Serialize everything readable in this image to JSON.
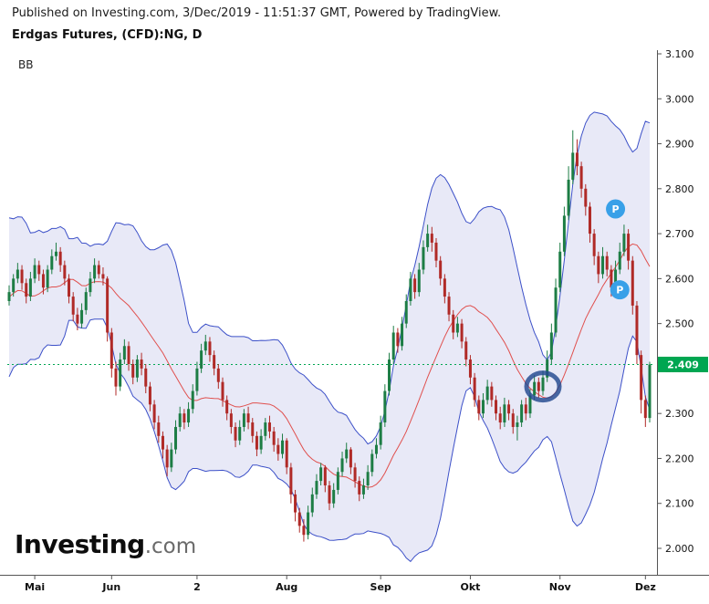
{
  "header": {
    "published_line": "Published on Investing.com, 3/Dec/2019 - 11:51:37 GMT, Powered by TradingView.",
    "instrument_title": "Erdgas Futures, (CFD):NG, D"
  },
  "indicator_label": "BB",
  "watermark": {
    "bold": "Investing",
    "suffix": ".com"
  },
  "colors": {
    "up": "#1d7d45",
    "down": "#b02a27",
    "band_line": "#3c50c8",
    "band_fill": "rgba(90,102,196,0.14)",
    "basis_line": "#e0504e",
    "last_price": "#00a651",
    "marker": "#38a0e8",
    "annotation": "#22498f",
    "axis_line": "#555555",
    "axis_text": "#111111"
  },
  "chart_data": {
    "type": "candlestick",
    "title": "Erdgas Futures, (CFD):NG, D",
    "interval": "D",
    "overlays": [
      "Bollinger Bands"
    ],
    "indicator": {
      "name": "BB",
      "period": 20,
      "stddev": 2
    },
    "y_axis": {
      "min": 1.95,
      "max": 3.12,
      "ticks": [
        {
          "label": "3.100",
          "price": 3.1
        },
        {
          "label": "3.000",
          "price": 3.0
        },
        {
          "label": "2.900",
          "price": 2.9
        },
        {
          "label": "2.800",
          "price": 2.8
        },
        {
          "label": "2.700",
          "price": 2.7
        },
        {
          "label": "2.600",
          "price": 2.6
        },
        {
          "label": "2.500",
          "price": 2.5
        },
        {
          "label": "2.400",
          "price": 2.4
        },
        {
          "label": "2.300",
          "price": 2.3
        },
        {
          "label": "2.200",
          "price": 2.2
        },
        {
          "label": "2.100",
          "price": 2.1
        },
        {
          "label": "2.000",
          "price": 2.0
        }
      ]
    },
    "x_axis": {
      "ticks": [
        {
          "label": "Mai",
          "index": 6
        },
        {
          "label": "Jun",
          "index": 24
        },
        {
          "label": "2",
          "index": 44
        },
        {
          "label": "Aug",
          "index": 65
        },
        {
          "label": "Sep",
          "index": 87
        },
        {
          "label": "Okt",
          "index": 108
        },
        {
          "label": "Nov",
          "index": 129
        },
        {
          "label": "Dez",
          "index": 149
        }
      ]
    },
    "last_price": {
      "value": 2.409,
      "label": "2.409"
    },
    "bb_warmup_closes": [
      2.42,
      2.5,
      2.6,
      2.68,
      2.72,
      2.62,
      2.52,
      2.44,
      2.5,
      2.6,
      2.66,
      2.58,
      2.46,
      2.42,
      2.52,
      2.62,
      2.68,
      2.58,
      2.48
    ],
    "candles_ohlc": [
      [
        2.55,
        2.585,
        2.54,
        2.57
      ],
      [
        2.57,
        2.61,
        2.56,
        2.6
      ],
      [
        2.6,
        2.635,
        2.59,
        2.62
      ],
      [
        2.62,
        2.63,
        2.575,
        2.59
      ],
      [
        2.59,
        2.6,
        2.545,
        2.56
      ],
      [
        2.56,
        2.615,
        2.55,
        2.6
      ],
      [
        2.6,
        2.645,
        2.59,
        2.63
      ],
      [
        2.63,
        2.64,
        2.595,
        2.61
      ],
      [
        2.61,
        2.62,
        2.565,
        2.58
      ],
      [
        2.58,
        2.63,
        2.57,
        2.62
      ],
      [
        2.62,
        2.665,
        2.61,
        2.65
      ],
      [
        2.65,
        2.68,
        2.64,
        2.66
      ],
      [
        2.66,
        2.67,
        2.615,
        2.63
      ],
      [
        2.63,
        2.64,
        2.585,
        2.6
      ],
      [
        2.6,
        2.61,
        2.545,
        2.56
      ],
      [
        2.56,
        2.57,
        2.505,
        2.52
      ],
      [
        2.52,
        2.535,
        2.485,
        2.5
      ],
      [
        2.5,
        2.545,
        2.49,
        2.53
      ],
      [
        2.53,
        2.58,
        2.52,
        2.57
      ],
      [
        2.57,
        2.615,
        2.56,
        2.6
      ],
      [
        2.6,
        2.645,
        2.59,
        2.63
      ],
      [
        2.63,
        2.64,
        2.6,
        2.61
      ],
      [
        2.61,
        2.625,
        2.585,
        2.6
      ],
      [
        2.6,
        2.605,
        2.46,
        2.48
      ],
      [
        2.48,
        2.49,
        2.38,
        2.4
      ],
      [
        2.4,
        2.415,
        2.34,
        2.36
      ],
      [
        2.36,
        2.435,
        2.35,
        2.42
      ],
      [
        2.42,
        2.465,
        2.41,
        2.45
      ],
      [
        2.45,
        2.46,
        2.395,
        2.41
      ],
      [
        2.41,
        2.42,
        2.365,
        2.38
      ],
      [
        2.38,
        2.43,
        2.37,
        2.42
      ],
      [
        2.42,
        2.435,
        2.385,
        2.4
      ],
      [
        2.4,
        2.41,
        2.345,
        2.36
      ],
      [
        2.36,
        2.37,
        2.305,
        2.32
      ],
      [
        2.32,
        2.33,
        2.265,
        2.28
      ],
      [
        2.28,
        2.295,
        2.235,
        2.25
      ],
      [
        2.25,
        2.26,
        2.2,
        2.22
      ],
      [
        2.22,
        2.23,
        2.16,
        2.18
      ],
      [
        2.18,
        2.235,
        2.17,
        2.22
      ],
      [
        2.22,
        2.285,
        2.21,
        2.27
      ],
      [
        2.27,
        2.315,
        2.26,
        2.3
      ],
      [
        2.3,
        2.31,
        2.265,
        2.28
      ],
      [
        2.28,
        2.325,
        2.27,
        2.31
      ],
      [
        2.31,
        2.365,
        2.3,
        2.35
      ],
      [
        2.35,
        2.415,
        2.34,
        2.4
      ],
      [
        2.4,
        2.455,
        2.39,
        2.44
      ],
      [
        2.44,
        2.475,
        2.43,
        2.46
      ],
      [
        2.46,
        2.47,
        2.415,
        2.43
      ],
      [
        2.43,
        2.44,
        2.385,
        2.4
      ],
      [
        2.4,
        2.41,
        2.355,
        2.37
      ],
      [
        2.37,
        2.38,
        2.315,
        2.33
      ],
      [
        2.33,
        2.34,
        2.285,
        2.3
      ],
      [
        2.3,
        2.31,
        2.255,
        2.27
      ],
      [
        2.27,
        2.28,
        2.225,
        2.24
      ],
      [
        2.24,
        2.285,
        2.23,
        2.27
      ],
      [
        2.27,
        2.31,
        2.26,
        2.3
      ],
      [
        2.3,
        2.315,
        2.265,
        2.28
      ],
      [
        2.28,
        2.29,
        2.235,
        2.25
      ],
      [
        2.25,
        2.26,
        2.205,
        2.22
      ],
      [
        2.22,
        2.265,
        2.21,
        2.25
      ],
      [
        2.25,
        2.29,
        2.24,
        2.28
      ],
      [
        2.28,
        2.295,
        2.245,
        2.26
      ],
      [
        2.26,
        2.27,
        2.215,
        2.23
      ],
      [
        2.23,
        2.245,
        2.195,
        2.21
      ],
      [
        2.21,
        2.255,
        2.2,
        2.24
      ],
      [
        2.24,
        2.245,
        2.165,
        2.18
      ],
      [
        2.18,
        2.19,
        2.1,
        2.12
      ],
      [
        2.12,
        2.13,
        2.06,
        2.08
      ],
      [
        2.08,
        2.09,
        2.035,
        2.05
      ],
      [
        2.05,
        2.065,
        2.015,
        2.03
      ],
      [
        2.03,
        2.095,
        2.02,
        2.08
      ],
      [
        2.08,
        2.135,
        2.07,
        2.12
      ],
      [
        2.12,
        2.165,
        2.11,
        2.15
      ],
      [
        2.15,
        2.19,
        2.14,
        2.18
      ],
      [
        2.18,
        2.185,
        2.125,
        2.14
      ],
      [
        2.14,
        2.15,
        2.085,
        2.1
      ],
      [
        2.1,
        2.145,
        2.09,
        2.13
      ],
      [
        2.13,
        2.18,
        2.12,
        2.17
      ],
      [
        2.17,
        2.215,
        2.16,
        2.2
      ],
      [
        2.2,
        2.235,
        2.19,
        2.22
      ],
      [
        2.22,
        2.225,
        2.165,
        2.18
      ],
      [
        2.18,
        2.19,
        2.135,
        2.15
      ],
      [
        2.15,
        2.16,
        2.105,
        2.12
      ],
      [
        2.12,
        2.155,
        2.11,
        2.14
      ],
      [
        2.14,
        2.185,
        2.13,
        2.17
      ],
      [
        2.17,
        2.22,
        2.16,
        2.21
      ],
      [
        2.21,
        2.245,
        2.2,
        2.23
      ],
      [
        2.23,
        2.295,
        2.22,
        2.28
      ],
      [
        2.28,
        2.365,
        2.27,
        2.35
      ],
      [
        2.35,
        2.435,
        2.34,
        2.42
      ],
      [
        2.42,
        2.495,
        2.41,
        2.48
      ],
      [
        2.48,
        2.49,
        2.435,
        2.45
      ],
      [
        2.45,
        2.515,
        2.44,
        2.5
      ],
      [
        2.5,
        2.565,
        2.49,
        2.55
      ],
      [
        2.55,
        2.615,
        2.54,
        2.6
      ],
      [
        2.6,
        2.61,
        2.555,
        2.57
      ],
      [
        2.57,
        2.635,
        2.56,
        2.62
      ],
      [
        2.62,
        2.685,
        2.61,
        2.67
      ],
      [
        2.67,
        2.72,
        2.66,
        2.7
      ],
      [
        2.7,
        2.715,
        2.66,
        2.68
      ],
      [
        2.68,
        2.69,
        2.625,
        2.64
      ],
      [
        2.64,
        2.65,
        2.585,
        2.6
      ],
      [
        2.6,
        2.61,
        2.545,
        2.56
      ],
      [
        2.56,
        2.57,
        2.505,
        2.52
      ],
      [
        2.52,
        2.53,
        2.465,
        2.48
      ],
      [
        2.48,
        2.515,
        2.47,
        2.5
      ],
      [
        2.5,
        2.51,
        2.445,
        2.46
      ],
      [
        2.46,
        2.47,
        2.405,
        2.42
      ],
      [
        2.42,
        2.43,
        2.365,
        2.38
      ],
      [
        2.38,
        2.39,
        2.315,
        2.33
      ],
      [
        2.33,
        2.34,
        2.285,
        2.3
      ],
      [
        2.3,
        2.345,
        2.29,
        2.33
      ],
      [
        2.33,
        2.375,
        2.32,
        2.36
      ],
      [
        2.36,
        2.37,
        2.315,
        2.33
      ],
      [
        2.33,
        2.34,
        2.285,
        2.3
      ],
      [
        2.3,
        2.315,
        2.265,
        2.28
      ],
      [
        2.28,
        2.335,
        2.27,
        2.32
      ],
      [
        2.32,
        2.33,
        2.285,
        2.3
      ],
      [
        2.3,
        2.31,
        2.255,
        2.27
      ],
      [
        2.27,
        2.295,
        2.24,
        2.28
      ],
      [
        2.28,
        2.33,
        2.27,
        2.32
      ],
      [
        2.32,
        2.335,
        2.285,
        2.3
      ],
      [
        2.3,
        2.355,
        2.29,
        2.34
      ],
      [
        2.34,
        2.385,
        2.33,
        2.37
      ],
      [
        2.37,
        2.38,
        2.335,
        2.35
      ],
      [
        2.35,
        2.395,
        2.34,
        2.38
      ],
      [
        2.38,
        2.44,
        2.37,
        2.42
      ],
      [
        2.42,
        2.5,
        2.41,
        2.48
      ],
      [
        2.48,
        2.6,
        2.47,
        2.58
      ],
      [
        2.58,
        2.68,
        2.57,
        2.66
      ],
      [
        2.66,
        2.76,
        2.65,
        2.74
      ],
      [
        2.74,
        2.85,
        2.73,
        2.82
      ],
      [
        2.82,
        2.93,
        2.81,
        2.88
      ],
      [
        2.88,
        2.91,
        2.83,
        2.85
      ],
      [
        2.85,
        2.86,
        2.78,
        2.8
      ],
      [
        2.8,
        2.81,
        2.74,
        2.76
      ],
      [
        2.76,
        2.77,
        2.68,
        2.7
      ],
      [
        2.7,
        2.71,
        2.63,
        2.65
      ],
      [
        2.65,
        2.66,
        2.59,
        2.61
      ],
      [
        2.61,
        2.67,
        2.6,
        2.65
      ],
      [
        2.65,
        2.66,
        2.605,
        2.62
      ],
      [
        2.62,
        2.63,
        2.56,
        2.58
      ],
      [
        2.58,
        2.64,
        2.57,
        2.62
      ],
      [
        2.62,
        2.68,
        2.61,
        2.66
      ],
      [
        2.66,
        2.72,
        2.65,
        2.7
      ],
      [
        2.7,
        2.71,
        2.62,
        2.64
      ],
      [
        2.64,
        2.65,
        2.52,
        2.54
      ],
      [
        2.54,
        2.55,
        2.41,
        2.43
      ],
      [
        2.43,
        2.44,
        2.3,
        2.33
      ],
      [
        2.33,
        2.34,
        2.27,
        2.29
      ],
      [
        2.29,
        2.415,
        2.28,
        2.409
      ]
    ],
    "markers": [
      {
        "label": "P",
        "index": 142,
        "price": 2.755
      },
      {
        "label": "P",
        "index": 143,
        "price": 2.575
      }
    ],
    "annotations": [
      {
        "type": "circle",
        "index": 125,
        "price": 2.36
      }
    ]
  }
}
